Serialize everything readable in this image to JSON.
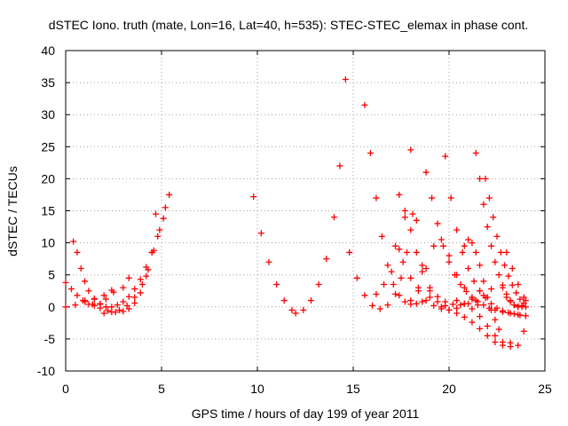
{
  "chart_data": {
    "type": "scatter",
    "title": "dSTEC Iono. truth (mate, Lon=16, Lat=40, h=535): STEC-STEC_elemax in phase cont.",
    "xlabel": "GPS time / hours of day 199 of year 2011",
    "ylabel": "dSTEC  / TECUs",
    "xlim": [
      0,
      25
    ],
    "ylim": [
      -10,
      40
    ],
    "xticks": [
      0,
      5,
      10,
      15,
      20,
      25
    ],
    "yticks": [
      -10,
      -5,
      0,
      5,
      10,
      15,
      20,
      25,
      30,
      35,
      40
    ],
    "grid": true,
    "marker": "+",
    "color": "#ff0000",
    "series": [
      {
        "x": [
          0.0,
          0.3,
          0.6,
          0.9,
          1.2,
          1.5,
          1.8,
          2.1,
          2.4
        ],
        "y": [
          3.8,
          2.8,
          1.8,
          1.0,
          0.4,
          0.2,
          0.5,
          1.2,
          2.6
        ]
      },
      {
        "x": [
          0.0,
          0.5,
          1.0,
          1.5,
          2.0,
          2.5,
          3.0,
          3.3
        ],
        "y": [
          0.0,
          0.3,
          0.8,
          1.3,
          1.8,
          2.3,
          3.0,
          4.5
        ]
      },
      {
        "x": [
          0.4,
          0.6,
          0.8,
          1.0,
          1.2,
          1.5,
          1.8,
          2.1,
          2.4,
          2.7,
          3.0,
          3.3,
          3.6,
          3.9,
          4.2,
          4.5,
          4.8,
          5.1,
          5.4
        ],
        "y": [
          10.2,
          8.5,
          6.0,
          4.0,
          2.5,
          1.2,
          0.4,
          0.0,
          0.0,
          0.3,
          0.8,
          1.6,
          2.8,
          4.3,
          6.2,
          8.5,
          11.0,
          13.8,
          17.5
        ]
      },
      {
        "x": [
          1.0,
          1.4,
          1.8,
          2.2,
          2.6,
          3.0,
          3.3,
          3.6,
          3.9,
          4.2,
          4.5,
          4.7
        ],
        "y": [
          1.0,
          0.4,
          -0.2,
          -0.6,
          -0.8,
          -0.7,
          -0.3,
          0.6,
          2.2,
          4.8,
          8.5,
          14.5
        ]
      },
      {
        "x": [
          2.0,
          2.4,
          2.8,
          3.2,
          3.6,
          4.0,
          4.3,
          4.6,
          4.9,
          5.2
        ],
        "y": [
          -1.0,
          -0.8,
          -0.5,
          0.2,
          1.5,
          3.5,
          5.8,
          8.8,
          12.0,
          15.5
        ]
      },
      {
        "x": [
          9.8,
          10.2,
          10.6,
          11.0,
          11.4,
          11.8,
          12.0,
          12.4,
          12.8,
          13.2,
          13.6,
          14.0,
          14.3,
          14.6
        ],
        "y": [
          17.2,
          11.5,
          7.0,
          3.5,
          1.0,
          -0.5,
          -1.0,
          -0.5,
          1.0,
          3.5,
          7.5,
          14.0,
          22.0,
          35.5
        ]
      },
      {
        "x": [
          14.8,
          15.2,
          15.6,
          16.0,
          16.4,
          16.8,
          17.2,
          17.5,
          17.8,
          18.1
        ],
        "y": [
          8.5,
          4.5,
          1.8,
          0.2,
          -0.3,
          0.3,
          2.0,
          4.5,
          8.5,
          14.5
        ]
      },
      {
        "x": [
          15.6,
          15.9,
          16.2,
          16.5,
          16.8,
          17.1,
          17.4,
          17.7,
          18.0,
          18.3,
          18.6,
          19.0
        ],
        "y": [
          31.5,
          24.0,
          17.0,
          11.0,
          6.5,
          3.5,
          1.8,
          0.8,
          0.4,
          0.5,
          0.8,
          1.5
        ]
      },
      {
        "x": [
          16.2,
          16.6,
          17.0,
          17.4,
          17.7,
          18.0,
          18.3,
          18.6,
          19.0,
          19.4,
          19.8
        ],
        "y": [
          2.0,
          3.5,
          5.5,
          9.0,
          14.0,
          24.5,
          13.5,
          6.5,
          2.5,
          0.8,
          0.2
        ]
      },
      {
        "x": [
          17.2,
          17.6,
          18.0,
          18.4,
          18.8,
          19.2,
          19.6,
          20.0,
          20.4,
          20.8,
          21.2,
          21.6
        ],
        "y": [
          9.5,
          7.0,
          4.5,
          2.5,
          1.0,
          0.2,
          -0.3,
          -0.5,
          -0.2,
          0.5,
          1.5,
          2.5
        ]
      },
      {
        "x": [
          17.4,
          17.7,
          18.0,
          18.3,
          18.6,
          19.0,
          19.4,
          19.8,
          20.2,
          20.6,
          21.0,
          21.4,
          21.8,
          22.2
        ],
        "y": [
          17.5,
          15.0,
          12.0,
          8.5,
          5.5,
          3.0,
          1.6,
          0.8,
          0.4,
          0.3,
          0.5,
          1.0,
          1.8,
          2.8
        ]
      },
      {
        "x": [
          18.0,
          18.4,
          18.8,
          19.2,
          19.6,
          20.0,
          20.4,
          20.8,
          21.2,
          21.5
        ],
        "y": [
          1.0,
          3.0,
          6.0,
          9.5,
          10.5,
          8.0,
          5.0,
          3.0,
          1.2,
          0.3
        ]
      },
      {
        "x": [
          18.8,
          19.1,
          19.4,
          19.7,
          20.0,
          20.3,
          20.6,
          20.9,
          21.2,
          21.5,
          21.8,
          22.1,
          22.4,
          22.8,
          23.2,
          23.6,
          24.0
        ],
        "y": [
          21.0,
          17.0,
          13.0,
          9.5,
          7.0,
          5.0,
          3.5,
          2.4,
          1.5,
          0.8,
          0.3,
          -0.2,
          -0.5,
          -0.8,
          -1.0,
          -1.2,
          -1.4
        ]
      },
      {
        "x": [
          19.8,
          20.1,
          20.4,
          20.7,
          21.0,
          21.3,
          21.6,
          21.9,
          22.2,
          22.5,
          22.8,
          23.1,
          23.4,
          23.7,
          24.0
        ],
        "y": [
          23.5,
          17.0,
          12.0,
          8.5,
          6.0,
          4.0,
          2.5,
          1.4,
          0.5,
          -0.2,
          -0.6,
          -0.9,
          -1.1,
          -1.3,
          -1.4
        ]
      },
      {
        "x": [
          19.6,
          20.0,
          20.4,
          20.8,
          21.2,
          21.6,
          22.0,
          22.4,
          22.8,
          23.2
        ],
        "y": [
          0.0,
          -0.5,
          -1.0,
          -1.6,
          -2.4,
          -3.4,
          -4.5,
          -5.5,
          -6.0,
          -5.6
        ]
      },
      {
        "x": [
          20.4,
          20.8,
          21.2,
          21.6,
          22.0,
          22.4,
          22.8,
          23.2,
          23.6,
          23.9
        ],
        "y": [
          1.0,
          0.5,
          -0.3,
          -1.5,
          -3.0,
          -4.5,
          -5.5,
          -6.2,
          -6.0,
          -3.8
        ]
      },
      {
        "x": [
          20.8,
          21.0,
          21.2,
          21.4,
          21.6,
          21.8,
          22.0,
          22.2,
          22.4,
          22.6
        ],
        "y": [
          9.5,
          10.5,
          10.0,
          8.5,
          6.5,
          4.0,
          1.5,
          -0.5,
          -2.0,
          -3.5
        ]
      },
      {
        "x": [
          21.4,
          21.6,
          21.8,
          22.0,
          22.2,
          22.4,
          22.6,
          22.8,
          23.0,
          23.2,
          23.4,
          23.6,
          23.8,
          24.0
        ],
        "y": [
          24.0,
          20.0,
          16.0,
          12.5,
          9.5,
          7.0,
          5.0,
          3.4,
          2.0,
          1.0,
          0.3,
          0.0,
          0.2,
          1.0
        ]
      },
      {
        "x": [
          21.9,
          22.1,
          22.3,
          22.5,
          22.7,
          22.9,
          23.1,
          23.3,
          23.5,
          23.7,
          23.9
        ],
        "y": [
          20.0,
          17.0,
          14.0,
          11.0,
          8.5,
          6.5,
          4.8,
          3.4,
          2.2,
          1.2,
          0.6
        ]
      },
      {
        "x": [
          22.8,
          23.0,
          23.2,
          23.4,
          23.6,
          23.8,
          24.0
        ],
        "y": [
          3.0,
          1.5,
          0.8,
          0.3,
          0.1,
          0.0,
          0.0
        ]
      },
      {
        "x": [
          23.0,
          23.3,
          23.6,
          23.9
        ],
        "y": [
          8.5,
          6.0,
          3.5,
          1.5
        ]
      }
    ]
  }
}
